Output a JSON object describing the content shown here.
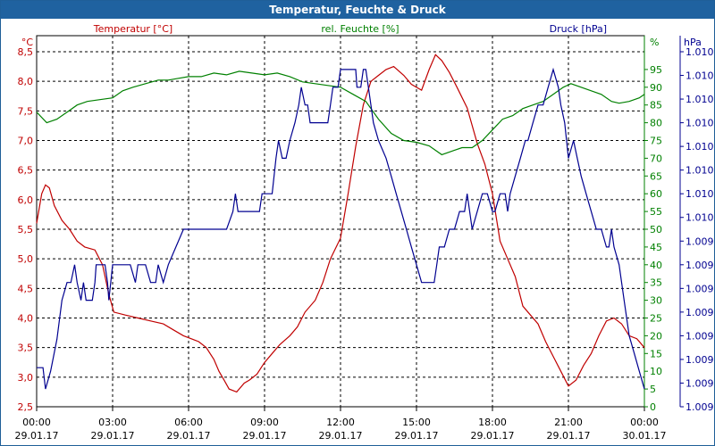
{
  "window": {
    "title": "Temperatur, Feuchte & Druck"
  },
  "chart_data": {
    "type": "line",
    "title": "Temperatur, Feuchte & Druck",
    "x": {
      "range": [
        0,
        24
      ],
      "ticks": [
        {
          "h": 0,
          "time": "00:00",
          "date": "29.01.17"
        },
        {
          "h": 3,
          "time": "03:00",
          "date": "29.01.17"
        },
        {
          "h": 6,
          "time": "06:00",
          "date": "29.01.17"
        },
        {
          "h": 9,
          "time": "09:00",
          "date": "29.01.17"
        },
        {
          "h": 12,
          "time": "12:00",
          "date": "29.01.17"
        },
        {
          "h": 15,
          "time": "15:00",
          "date": "29.01.17"
        },
        {
          "h": 18,
          "time": "18:00",
          "date": "29.01.17"
        },
        {
          "h": 21,
          "time": "21:00",
          "date": "29.01.17"
        },
        {
          "h": 24,
          "time": "00:00",
          "date": "30.01.17"
        }
      ]
    },
    "axes": {
      "left": {
        "unit": "°C",
        "range": [
          2.5,
          8.5
        ],
        "ticks": [
          "2,5",
          "3,0",
          "3,5",
          "4,0",
          "4,5",
          "5,0",
          "5,5",
          "6,0",
          "6,5",
          "7,0",
          "7,5",
          "8,0",
          "8,5"
        ],
        "color": "#c00000"
      },
      "mid": {
        "unit": "%",
        "range": [
          0,
          100
        ],
        "ticks": [
          "0",
          "5",
          "10",
          "15",
          "20",
          "25",
          "30",
          "35",
          "40",
          "45",
          "50",
          "55",
          "60",
          "65",
          "70",
          "75",
          "80",
          "85",
          "90",
          "95"
        ],
        "color": "#008000"
      },
      "right": {
        "unit": "hPa",
        "range": [
          0,
          100
        ],
        "ticks": [
          "1.009",
          "1.009",
          "1.009",
          "1.009",
          "1.009",
          "1.009",
          "1.009",
          "1.009",
          "1.010",
          "1.010",
          "1.010",
          "1.010",
          "1.010",
          "1.010",
          "1.010",
          "1.010"
        ],
        "color": "#000090"
      }
    },
    "grid": true,
    "series": [
      {
        "name": "Temperatur [°C]",
        "axis": "left",
        "color": "#c00000",
        "points": [
          [
            0,
            5.6
          ],
          [
            0.2,
            6.1
          ],
          [
            0.35,
            6.25
          ],
          [
            0.5,
            6.2
          ],
          [
            0.7,
            5.9
          ],
          [
            1.0,
            5.65
          ],
          [
            1.3,
            5.5
          ],
          [
            1.6,
            5.3
          ],
          [
            1.9,
            5.2
          ],
          [
            2.3,
            5.15
          ],
          [
            2.6,
            4.9
          ],
          [
            2.85,
            4.4
          ],
          [
            3.05,
            4.1
          ],
          [
            3.5,
            4.05
          ],
          [
            4.0,
            4.0
          ],
          [
            4.5,
            3.95
          ],
          [
            5.0,
            3.9
          ],
          [
            5.4,
            3.8
          ],
          [
            5.8,
            3.7
          ],
          [
            6.1,
            3.65
          ],
          [
            6.4,
            3.6
          ],
          [
            6.7,
            3.5
          ],
          [
            7.0,
            3.3
          ],
          [
            7.2,
            3.1
          ],
          [
            7.4,
            2.95
          ],
          [
            7.6,
            2.8
          ],
          [
            7.9,
            2.75
          ],
          [
            8.2,
            2.9
          ],
          [
            8.4,
            2.95
          ],
          [
            8.7,
            3.05
          ],
          [
            9.0,
            3.25
          ],
          [
            9.3,
            3.4
          ],
          [
            9.6,
            3.55
          ],
          [
            10.0,
            3.7
          ],
          [
            10.3,
            3.85
          ],
          [
            10.6,
            4.1
          ],
          [
            11.0,
            4.3
          ],
          [
            11.3,
            4.6
          ],
          [
            11.6,
            5.0
          ],
          [
            12.0,
            5.35
          ],
          [
            12.3,
            6.1
          ],
          [
            12.6,
            6.9
          ],
          [
            12.9,
            7.6
          ],
          [
            13.2,
            8.0
          ],
          [
            13.5,
            8.1
          ],
          [
            13.8,
            8.2
          ],
          [
            14.1,
            8.25
          ],
          [
            14.5,
            8.1
          ],
          [
            14.8,
            7.95
          ],
          [
            15.2,
            7.85
          ],
          [
            15.5,
            8.2
          ],
          [
            15.75,
            8.45
          ],
          [
            16.0,
            8.35
          ],
          [
            16.3,
            8.15
          ],
          [
            16.6,
            7.9
          ],
          [
            17.0,
            7.55
          ],
          [
            17.4,
            6.95
          ],
          [
            17.7,
            6.6
          ],
          [
            18.0,
            6.1
          ],
          [
            18.3,
            5.3
          ],
          [
            18.6,
            5.0
          ],
          [
            18.9,
            4.7
          ],
          [
            19.2,
            4.2
          ],
          [
            19.5,
            4.05
          ],
          [
            19.8,
            3.9
          ],
          [
            20.1,
            3.6
          ],
          [
            20.4,
            3.35
          ],
          [
            20.7,
            3.1
          ],
          [
            21.0,
            2.85
          ],
          [
            21.3,
            2.95
          ],
          [
            21.6,
            3.2
          ],
          [
            21.9,
            3.4
          ],
          [
            22.2,
            3.7
          ],
          [
            22.5,
            3.95
          ],
          [
            22.8,
            4.0
          ],
          [
            23.1,
            3.9
          ],
          [
            23.4,
            3.7
          ],
          [
            23.7,
            3.65
          ],
          [
            24.0,
            3.5
          ]
        ]
      },
      {
        "name": "rel. Feuchte [%]",
        "axis": "mid",
        "color": "#008000",
        "points": [
          [
            0,
            83
          ],
          [
            0.4,
            80
          ],
          [
            0.8,
            81
          ],
          [
            1.2,
            83
          ],
          [
            1.6,
            85
          ],
          [
            2.0,
            86
          ],
          [
            2.5,
            86.5
          ],
          [
            3.0,
            87
          ],
          [
            3.4,
            89
          ],
          [
            3.8,
            90
          ],
          [
            4.3,
            91
          ],
          [
            4.8,
            92
          ],
          [
            5.2,
            92
          ],
          [
            5.6,
            92.5
          ],
          [
            6.0,
            93
          ],
          [
            6.5,
            93
          ],
          [
            7.0,
            94
          ],
          [
            7.5,
            93.5
          ],
          [
            8.0,
            94.5
          ],
          [
            8.5,
            94
          ],
          [
            9.0,
            93.5
          ],
          [
            9.5,
            94
          ],
          [
            10.0,
            93
          ],
          [
            10.5,
            91.5
          ],
          [
            11.0,
            91
          ],
          [
            11.5,
            90.5
          ],
          [
            12.0,
            90
          ],
          [
            12.5,
            88
          ],
          [
            13.0,
            86
          ],
          [
            13.5,
            81
          ],
          [
            14.0,
            77
          ],
          [
            14.5,
            75
          ],
          [
            15.0,
            74.5
          ],
          [
            15.5,
            73.5
          ],
          [
            16.0,
            71
          ],
          [
            16.4,
            72
          ],
          [
            16.8,
            73
          ],
          [
            17.2,
            73
          ],
          [
            17.6,
            75
          ],
          [
            18.0,
            78
          ],
          [
            18.4,
            81
          ],
          [
            18.8,
            82
          ],
          [
            19.2,
            84
          ],
          [
            19.6,
            85
          ],
          [
            20.0,
            86
          ],
          [
            20.4,
            88
          ],
          [
            20.8,
            90
          ],
          [
            21.1,
            91
          ],
          [
            21.5,
            90
          ],
          [
            21.9,
            89
          ],
          [
            22.3,
            88
          ],
          [
            22.7,
            86
          ],
          [
            23.0,
            85.5
          ],
          [
            23.4,
            86
          ],
          [
            23.8,
            87
          ],
          [
            24.0,
            88
          ]
        ]
      },
      {
        "name": "Druck [hPa]",
        "axis": "right",
        "color": "#000090",
        "points": [
          [
            0,
            11
          ],
          [
            0.25,
            11
          ],
          [
            0.35,
            5
          ],
          [
            0.55,
            10
          ],
          [
            0.8,
            19
          ],
          [
            1.0,
            30
          ],
          [
            1.2,
            35
          ],
          [
            1.35,
            35
          ],
          [
            1.5,
            40
          ],
          [
            1.6,
            35
          ],
          [
            1.75,
            30
          ],
          [
            1.85,
            35
          ],
          [
            1.95,
            30
          ],
          [
            2.2,
            30
          ],
          [
            2.3,
            35
          ],
          [
            2.35,
            40
          ],
          [
            2.7,
            40
          ],
          [
            2.8,
            35
          ],
          [
            2.85,
            30
          ],
          [
            3.0,
            40
          ],
          [
            3.7,
            40
          ],
          [
            3.9,
            35
          ],
          [
            4.0,
            40
          ],
          [
            4.3,
            40
          ],
          [
            4.5,
            35
          ],
          [
            4.7,
            35
          ],
          [
            4.8,
            40
          ],
          [
            5.0,
            35
          ],
          [
            5.2,
            40
          ],
          [
            5.5,
            45
          ],
          [
            5.8,
            50
          ],
          [
            7.5,
            50
          ],
          [
            7.75,
            55
          ],
          [
            7.85,
            60
          ],
          [
            7.95,
            55
          ],
          [
            8.0,
            55
          ],
          [
            8.8,
            55
          ],
          [
            8.9,
            60
          ],
          [
            9.3,
            60
          ],
          [
            9.45,
            70
          ],
          [
            9.55,
            75
          ],
          [
            9.7,
            70
          ],
          [
            9.85,
            70
          ],
          [
            10.0,
            75
          ],
          [
            10.2,
            80
          ],
          [
            10.35,
            85
          ],
          [
            10.45,
            90
          ],
          [
            10.6,
            85
          ],
          [
            10.7,
            85
          ],
          [
            10.8,
            80
          ],
          [
            11.5,
            80
          ],
          [
            11.6,
            85
          ],
          [
            11.7,
            90
          ],
          [
            11.9,
            90
          ],
          [
            12.0,
            95
          ],
          [
            12.6,
            95
          ],
          [
            12.65,
            90
          ],
          [
            12.8,
            90
          ],
          [
            12.9,
            95
          ],
          [
            13.0,
            95
          ],
          [
            13.1,
            90
          ],
          [
            13.2,
            85
          ],
          [
            13.3,
            80
          ],
          [
            13.5,
            75
          ],
          [
            13.8,
            70
          ],
          [
            14.0,
            65
          ],
          [
            14.2,
            60
          ],
          [
            14.4,
            55
          ],
          [
            14.6,
            50
          ],
          [
            14.8,
            45
          ],
          [
            15.0,
            40
          ],
          [
            15.2,
            35
          ],
          [
            15.7,
            35
          ],
          [
            15.8,
            40
          ],
          [
            15.9,
            45
          ],
          [
            16.1,
            45
          ],
          [
            16.3,
            50
          ],
          [
            16.5,
            50
          ],
          [
            16.7,
            55
          ],
          [
            16.9,
            55
          ],
          [
            17.0,
            60
          ],
          [
            17.1,
            55
          ],
          [
            17.2,
            50
          ],
          [
            17.4,
            55
          ],
          [
            17.6,
            60
          ],
          [
            17.8,
            60
          ],
          [
            18.0,
            55
          ],
          [
            18.1,
            55
          ],
          [
            18.3,
            60
          ],
          [
            18.5,
            60
          ],
          [
            18.6,
            55
          ],
          [
            18.7,
            60
          ],
          [
            18.9,
            65
          ],
          [
            19.1,
            70
          ],
          [
            19.3,
            75
          ],
          [
            19.4,
            75
          ],
          [
            19.6,
            80
          ],
          [
            19.8,
            85
          ],
          [
            20.0,
            85
          ],
          [
            20.2,
            90
          ],
          [
            20.4,
            95
          ],
          [
            20.6,
            90
          ],
          [
            20.7,
            85
          ],
          [
            20.85,
            80
          ],
          [
            21.0,
            70
          ],
          [
            21.2,
            75
          ],
          [
            21.35,
            70
          ],
          [
            21.5,
            65
          ],
          [
            21.7,
            60
          ],
          [
            21.9,
            55
          ],
          [
            22.1,
            50
          ],
          [
            22.3,
            50
          ],
          [
            22.5,
            45
          ],
          [
            22.6,
            45
          ],
          [
            22.7,
            50
          ],
          [
            22.8,
            45
          ],
          [
            23.0,
            40
          ],
          [
            23.2,
            30
          ],
          [
            23.4,
            20
          ],
          [
            23.6,
            15
          ],
          [
            23.8,
            10
          ],
          [
            24.0,
            5
          ]
        ]
      }
    ]
  }
}
